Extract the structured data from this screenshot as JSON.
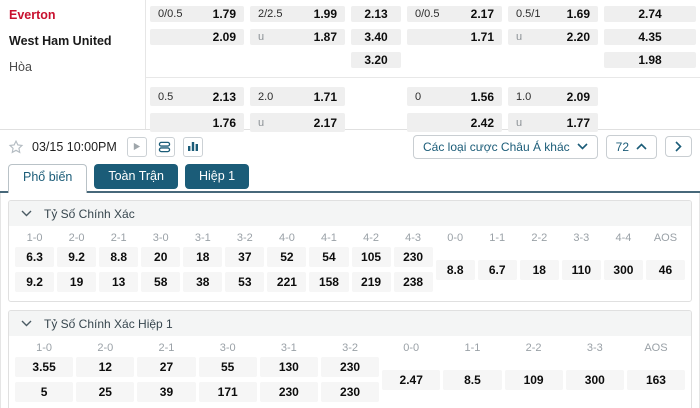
{
  "match": {
    "rows": [
      "Everton",
      "West Ham United",
      "Hòa"
    ]
  },
  "oddsGrid": {
    "group1": [
      {
        "style": "labeled",
        "cells": [
          {
            "label": "0/0.5",
            "value": "1.79"
          },
          {
            "label": "",
            "value": "2.09"
          },
          null
        ]
      },
      {
        "style": "labeled",
        "cells": [
          {
            "label": "2/2.5",
            "value": "1.99"
          },
          {
            "label": "u",
            "value": "1.87"
          },
          null
        ]
      },
      {
        "style": "plain",
        "cells": [
          {
            "value": "2.13"
          },
          {
            "value": "3.40"
          },
          {
            "value": "3.20"
          }
        ]
      },
      {
        "style": "labeled",
        "cells": [
          {
            "label": "0/0.5",
            "value": "2.17"
          },
          {
            "label": "",
            "value": "1.71"
          },
          null
        ]
      },
      {
        "style": "labeled",
        "cells": [
          {
            "label": "0.5/1",
            "value": "1.69"
          },
          {
            "label": "u",
            "value": "2.20"
          },
          null
        ]
      },
      {
        "style": "plain",
        "cells": [
          {
            "value": "2.74"
          },
          {
            "value": "4.35"
          },
          {
            "value": "1.98"
          }
        ]
      }
    ],
    "group2": [
      {
        "style": "labeled",
        "cells": [
          {
            "label": "0.5",
            "value": "2.13"
          },
          {
            "label": "",
            "value": "1.76"
          }
        ]
      },
      {
        "style": "labeled",
        "cells": [
          {
            "label": "2.0",
            "value": "1.71"
          },
          {
            "label": "u",
            "value": "2.17"
          }
        ]
      },
      {
        "style": "plain",
        "cells": [
          null,
          null
        ]
      },
      {
        "style": "labeled",
        "cells": [
          {
            "label": "0",
            "value": "1.56"
          },
          {
            "label": "",
            "value": "2.42"
          }
        ]
      },
      {
        "style": "labeled",
        "cells": [
          {
            "label": "1.0",
            "value": "2.09"
          },
          {
            "label": "u",
            "value": "1.77"
          }
        ]
      },
      {
        "style": "plain",
        "cells": [
          null,
          null
        ]
      }
    ]
  },
  "toolbar": {
    "datetime": "03/15 10:00PM",
    "asian_markets_label": "Các loại cược Châu Á khác",
    "markets_count": "72"
  },
  "tabs": [
    {
      "label": "Phổ biến",
      "active": true
    },
    {
      "label": "Toàn Trận",
      "active": false
    },
    {
      "label": "Hiệp 1",
      "active": false
    }
  ],
  "sections": [
    {
      "title": "Tỷ Số Chính Xác",
      "win_columns": [
        {
          "score": "1-0",
          "home": "6.3",
          "away": "9.2"
        },
        {
          "score": "2-0",
          "home": "9.2",
          "away": "19"
        },
        {
          "score": "2-1",
          "home": "8.8",
          "away": "13"
        },
        {
          "score": "3-0",
          "home": "20",
          "away": "58"
        },
        {
          "score": "3-1",
          "home": "18",
          "away": "38"
        },
        {
          "score": "3-2",
          "home": "37",
          "away": "53"
        },
        {
          "score": "4-0",
          "home": "52",
          "away": "221"
        },
        {
          "score": "4-1",
          "home": "54",
          "away": "158"
        },
        {
          "score": "4-2",
          "home": "105",
          "away": "219"
        },
        {
          "score": "4-3",
          "home": "230",
          "away": "238"
        }
      ],
      "draw_columns": [
        {
          "score": "0-0",
          "odds": "8.8"
        },
        {
          "score": "1-1",
          "odds": "6.7"
        },
        {
          "score": "2-2",
          "odds": "18"
        },
        {
          "score": "3-3",
          "odds": "110"
        },
        {
          "score": "4-4",
          "odds": "300"
        },
        {
          "score": "AOS",
          "odds": "46"
        }
      ]
    },
    {
      "title": "Tỷ Số Chính Xác Hiệp 1",
      "win_columns": [
        {
          "score": "1-0",
          "home": "3.55",
          "away": "5"
        },
        {
          "score": "2-0",
          "home": "12",
          "away": "25"
        },
        {
          "score": "2-1",
          "home": "27",
          "away": "39"
        },
        {
          "score": "3-0",
          "home": "55",
          "away": "171"
        },
        {
          "score": "3-1",
          "home": "130",
          "away": "230"
        },
        {
          "score": "3-2",
          "home": "230",
          "away": "230"
        }
      ],
      "draw_columns": [
        {
          "score": "0-0",
          "odds": "2.47"
        },
        {
          "score": "1-1",
          "odds": "8.5"
        },
        {
          "score": "2-2",
          "odds": "109"
        },
        {
          "score": "3-3",
          "odds": "300"
        },
        {
          "score": "AOS",
          "odds": "163"
        }
      ]
    }
  ],
  "colors": {
    "accent_teal": "#1b5c78",
    "home_red": "#c8102e"
  }
}
